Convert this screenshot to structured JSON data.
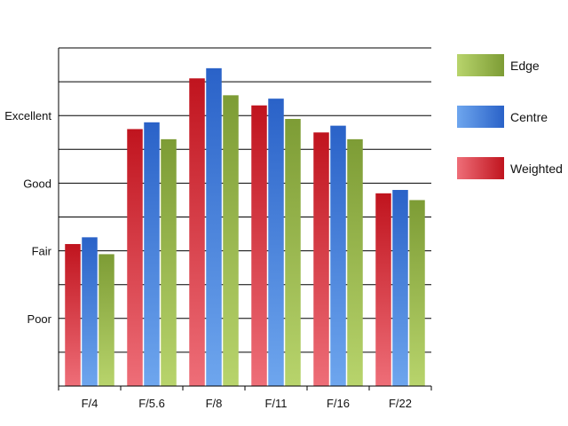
{
  "chart_data": {
    "type": "bar",
    "categories": [
      "F/4",
      "F/5.6",
      "F/8",
      "F/11",
      "F/16",
      "F/22"
    ],
    "series": [
      {
        "name": "Weighted",
        "values": [
          4.2,
          7.6,
          9.1,
          8.3,
          7.5,
          5.7
        ],
        "color": "#c0141e"
      },
      {
        "name": "Centre",
        "values": [
          4.4,
          7.8,
          9.4,
          8.5,
          7.7,
          5.8
        ],
        "color": "#2a62c8"
      },
      {
        "name": "Edge",
        "values": [
          3.9,
          7.3,
          8.6,
          7.9,
          7.3,
          5.5
        ],
        "color": "#7d9c35"
      }
    ],
    "y_tick_labels": [
      {
        "value": 2,
        "label": "Poor"
      },
      {
        "value": 4,
        "label": "Fair"
      },
      {
        "value": 6,
        "label": "Good"
      },
      {
        "value": 8,
        "label": "Excellent"
      }
    ],
    "ylim": [
      0,
      10
    ],
    "grid": true,
    "legend": {
      "placement": "right",
      "order": [
        "Edge",
        "Centre",
        "Weighted"
      ]
    }
  }
}
